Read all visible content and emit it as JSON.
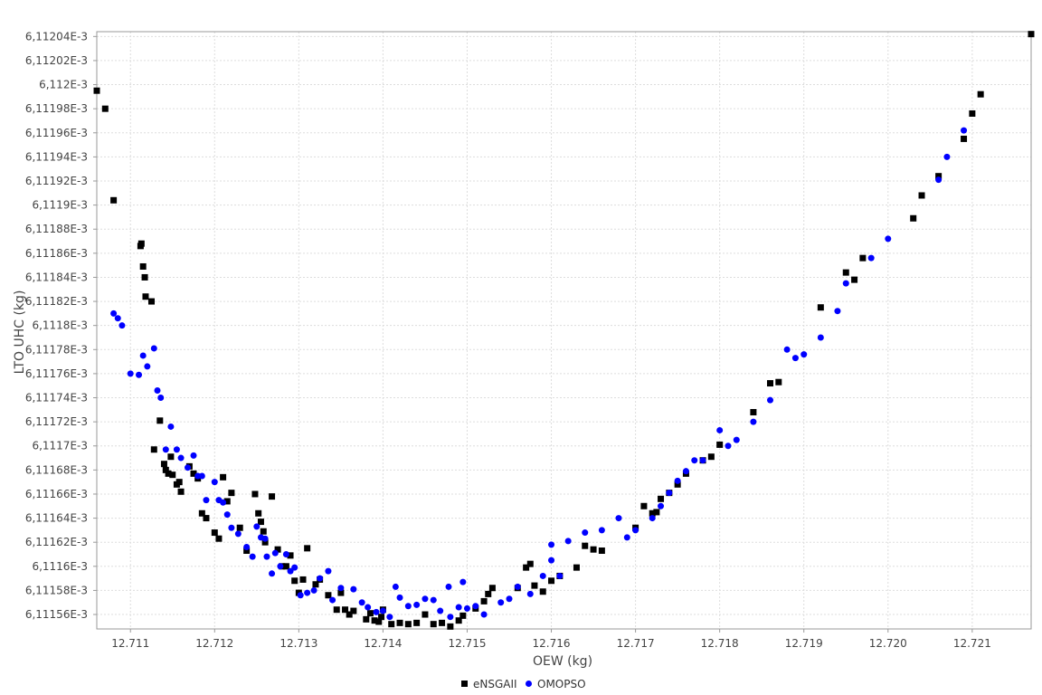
{
  "chart_data": {
    "type": "scatter",
    "title": "",
    "xlabel": "OEW (kg)",
    "ylabel": "LTO UHC (kg)",
    "xlim": [
      12.7106,
      12.7217
    ],
    "ylim": [
      6.111548,
      6.112044
    ],
    "x_ticks": [
      "12.711",
      "12.712",
      "12.713",
      "12.714",
      "12.715",
      "12.716",
      "12.717",
      "12.718",
      "12.719",
      "12.720",
      "12.721"
    ],
    "x_tick_values": [
      12.711,
      12.712,
      12.713,
      12.714,
      12.715,
      12.716,
      12.717,
      12.718,
      12.719,
      12.72,
      12.721
    ],
    "y_ticks": [
      "6,11204E-3",
      "6,11202E-3",
      "6,112E-3",
      "6,11198E-3",
      "6,11196E-3",
      "6,11194E-3",
      "6,11192E-3",
      "6,1119E-3",
      "6,11188E-3",
      "6,11186E-3",
      "6,11184E-3",
      "6,11182E-3",
      "6,1118E-3",
      "6,11178E-3",
      "6,11176E-3",
      "6,11174E-3",
      "6,11172E-3",
      "6,1117E-3",
      "6,11168E-3",
      "6,11166E-3",
      "6,11164E-3",
      "6,11162E-3",
      "6,1116E-3",
      "6,11158E-3",
      "6,11156E-3"
    ],
    "y_tick_values": [
      6.11204,
      6.11202,
      6.112,
      6.11198,
      6.11196,
      6.11194,
      6.11192,
      6.1119,
      6.11188,
      6.11186,
      6.11184,
      6.11182,
      6.1118,
      6.11178,
      6.11176,
      6.11174,
      6.11172,
      6.1117,
      6.11168,
      6.11166,
      6.11164,
      6.11162,
      6.1116,
      6.11158,
      6.11156
    ],
    "grid": true,
    "legend_position": "bottom-center",
    "series": [
      {
        "name": "eNSGAII",
        "marker": "square",
        "color": "#000000",
        "points": [
          [
            12.7106,
            6.111995
          ],
          [
            12.7107,
            6.11198
          ],
          [
            12.7108,
            6.111904
          ],
          [
            12.71113,
            6.111868
          ],
          [
            12.71112,
            6.111866
          ],
          [
            12.71115,
            6.111849
          ],
          [
            12.71117,
            6.11184
          ],
          [
            12.71118,
            6.111824
          ],
          [
            12.71125,
            6.11182
          ],
          [
            12.71128,
            6.111697
          ],
          [
            12.71135,
            6.111721
          ],
          [
            12.7114,
            6.111685
          ],
          [
            12.71142,
            6.11168
          ],
          [
            12.71145,
            6.111677
          ],
          [
            12.71148,
            6.111691
          ],
          [
            12.7115,
            6.111676
          ],
          [
            12.71155,
            6.111668
          ],
          [
            12.71158,
            6.11167
          ],
          [
            12.7116,
            6.111662
          ],
          [
            12.7117,
            6.111683
          ],
          [
            12.71175,
            6.111677
          ],
          [
            12.7118,
            6.111673
          ],
          [
            12.71185,
            6.111644
          ],
          [
            12.7119,
            6.11164
          ],
          [
            12.7121,
            6.111674
          ],
          [
            12.7122,
            6.111661
          ],
          [
            12.712,
            6.111628
          ],
          [
            12.71205,
            6.111623
          ],
          [
            12.71215,
            6.111654
          ],
          [
            12.7123,
            6.111632
          ],
          [
            12.71238,
            6.111613
          ],
          [
            12.71248,
            6.11166
          ],
          [
            12.71252,
            6.111644
          ],
          [
            12.71255,
            6.111637
          ],
          [
            12.71258,
            6.111629
          ],
          [
            12.7126,
            6.11162
          ],
          [
            12.71268,
            6.111658
          ],
          [
            12.71275,
            6.111614
          ],
          [
            12.7128,
            6.1116
          ],
          [
            12.71285,
            6.1116
          ],
          [
            12.7129,
            6.111609
          ],
          [
            12.71295,
            6.111588
          ],
          [
            12.713,
            6.111578
          ],
          [
            12.71305,
            6.111589
          ],
          [
            12.7131,
            6.111615
          ],
          [
            12.7132,
            6.111585
          ],
          [
            12.71325,
            6.111589
          ],
          [
            12.71335,
            6.111576
          ],
          [
            12.71345,
            6.111564
          ],
          [
            12.7135,
            6.111578
          ],
          [
            12.71355,
            6.111564
          ],
          [
            12.7136,
            6.11156
          ],
          [
            12.71365,
            6.111563
          ],
          [
            12.7138,
            6.111556
          ],
          [
            12.71385,
            6.111561
          ],
          [
            12.7139,
            6.111555
          ],
          [
            12.71395,
            6.111554
          ],
          [
            12.71398,
            6.111558
          ],
          [
            12.714,
            6.111564
          ],
          [
            12.7141,
            6.111552
          ],
          [
            12.7142,
            6.111553
          ],
          [
            12.7143,
            6.111552
          ],
          [
            12.7144,
            6.111553
          ],
          [
            12.7145,
            6.11156
          ],
          [
            12.7146,
            6.111552
          ],
          [
            12.7147,
            6.111553
          ],
          [
            12.7148,
            6.11155
          ],
          [
            12.7149,
            6.111555
          ],
          [
            12.71495,
            6.111559
          ],
          [
            12.7151,
            6.111565
          ],
          [
            12.7152,
            6.111571
          ],
          [
            12.71525,
            6.111577
          ],
          [
            12.7153,
            6.111582
          ],
          [
            12.7156,
            6.111582
          ],
          [
            12.7157,
            6.111599
          ],
          [
            12.71575,
            6.111602
          ],
          [
            12.7158,
            6.111584
          ],
          [
            12.7159,
            6.111579
          ],
          [
            12.716,
            6.111588
          ],
          [
            12.7161,
            6.111592
          ],
          [
            12.7163,
            6.111599
          ],
          [
            12.7164,
            6.111617
          ],
          [
            12.7165,
            6.111614
          ],
          [
            12.7166,
            6.111613
          ],
          [
            12.717,
            6.111632
          ],
          [
            12.7171,
            6.11165
          ],
          [
            12.7172,
            6.111644
          ],
          [
            12.71725,
            6.111645
          ],
          [
            12.7173,
            6.111656
          ],
          [
            12.7174,
            6.111661
          ],
          [
            12.7175,
            6.111668
          ],
          [
            12.7176,
            6.111677
          ],
          [
            12.7178,
            6.111688
          ],
          [
            12.7179,
            6.111691
          ],
          [
            12.718,
            6.111701
          ],
          [
            12.7184,
            6.111728
          ],
          [
            12.7186,
            6.111752
          ],
          [
            12.7187,
            6.111753
          ],
          [
            12.7195,
            6.111844
          ],
          [
            12.7196,
            6.111838
          ],
          [
            12.7192,
            6.111815
          ],
          [
            12.7197,
            6.111856
          ],
          [
            12.7203,
            6.111889
          ],
          [
            12.7204,
            6.111908
          ],
          [
            12.7206,
            6.111924
          ],
          [
            12.7209,
            6.111955
          ],
          [
            12.721,
            6.111976
          ],
          [
            12.7211,
            6.111992
          ],
          [
            12.7217,
            6.112042
          ]
        ]
      },
      {
        "name": "OMOPSO",
        "marker": "circle",
        "color": "#0000ff",
        "points": [
          [
            12.7108,
            6.11181
          ],
          [
            12.71085,
            6.111806
          ],
          [
            12.7109,
            6.1118
          ],
          [
            12.711,
            6.11176
          ],
          [
            12.7111,
            6.111759
          ],
          [
            12.71115,
            6.111775
          ],
          [
            12.7112,
            6.111766
          ],
          [
            12.71128,
            6.111781
          ],
          [
            12.71132,
            6.111746
          ],
          [
            12.71136,
            6.11174
          ],
          [
            12.71142,
            6.111697
          ],
          [
            12.71148,
            6.111716
          ],
          [
            12.71155,
            6.111697
          ],
          [
            12.7116,
            6.11169
          ],
          [
            12.71168,
            6.111682
          ],
          [
            12.71175,
            6.111692
          ],
          [
            12.7118,
            6.111675
          ],
          [
            12.71185,
            6.111675
          ],
          [
            12.7119,
            6.111655
          ],
          [
            12.712,
            6.11167
          ],
          [
            12.71205,
            6.111655
          ],
          [
            12.7121,
            6.111653
          ],
          [
            12.71215,
            6.111643
          ],
          [
            12.7122,
            6.111632
          ],
          [
            12.71228,
            6.111627
          ],
          [
            12.71238,
            6.111616
          ],
          [
            12.71245,
            6.111608
          ],
          [
            12.7125,
            6.111633
          ],
          [
            12.71255,
            6.111624
          ],
          [
            12.7126,
            6.111623
          ],
          [
            12.71262,
            6.111608
          ],
          [
            12.71268,
            6.111594
          ],
          [
            12.71272,
            6.111611
          ],
          [
            12.71278,
            6.1116
          ],
          [
            12.71285,
            6.11161
          ],
          [
            12.7129,
            6.111596
          ],
          [
            12.71295,
            6.111599
          ],
          [
            12.71302,
            6.111576
          ],
          [
            12.7131,
            6.111578
          ],
          [
            12.71318,
            6.11158
          ],
          [
            12.71325,
            6.11159
          ],
          [
            12.71335,
            6.111596
          ],
          [
            12.7134,
            6.111572
          ],
          [
            12.7135,
            6.111582
          ],
          [
            12.71365,
            6.111581
          ],
          [
            12.71375,
            6.11157
          ],
          [
            12.71382,
            6.111566
          ],
          [
            12.71392,
            6.111562
          ],
          [
            12.714,
            6.111563
          ],
          [
            12.71408,
            6.111558
          ],
          [
            12.71415,
            6.111583
          ],
          [
            12.7142,
            6.111574
          ],
          [
            12.7143,
            6.111567
          ],
          [
            12.7144,
            6.111568
          ],
          [
            12.7145,
            6.111573
          ],
          [
            12.7146,
            6.111572
          ],
          [
            12.71468,
            6.111563
          ],
          [
            12.71478,
            6.111583
          ],
          [
            12.7148,
            6.111558
          ],
          [
            12.7149,
            6.111566
          ],
          [
            12.71495,
            6.111587
          ],
          [
            12.715,
            6.111565
          ],
          [
            12.7151,
            6.111567
          ],
          [
            12.7152,
            6.11156
          ],
          [
            12.7154,
            6.11157
          ],
          [
            12.7155,
            6.111573
          ],
          [
            12.7156,
            6.111583
          ],
          [
            12.71575,
            6.111577
          ],
          [
            12.7159,
            6.111592
          ],
          [
            12.716,
            6.111605
          ],
          [
            12.716,
            6.111618
          ],
          [
            12.7161,
            6.111592
          ],
          [
            12.7162,
            6.111621
          ],
          [
            12.7164,
            6.111628
          ],
          [
            12.7166,
            6.11163
          ],
          [
            12.7168,
            6.11164
          ],
          [
            12.7169,
            6.111624
          ],
          [
            12.717,
            6.11163
          ],
          [
            12.7172,
            6.11164
          ],
          [
            12.7173,
            6.11165
          ],
          [
            12.7174,
            6.111661
          ],
          [
            12.7175,
            6.111671
          ],
          [
            12.7176,
            6.111679
          ],
          [
            12.7177,
            6.111688
          ],
          [
            12.7178,
            6.111688
          ],
          [
            12.718,
            6.111713
          ],
          [
            12.7181,
            6.1117
          ],
          [
            12.7182,
            6.111705
          ],
          [
            12.7184,
            6.11172
          ],
          [
            12.7186,
            6.111738
          ],
          [
            12.7188,
            6.11178
          ],
          [
            12.7189,
            6.111773
          ],
          [
            12.719,
            6.111776
          ],
          [
            12.7192,
            6.11179
          ],
          [
            12.7194,
            6.111812
          ],
          [
            12.7195,
            6.111835
          ],
          [
            12.7198,
            6.111856
          ],
          [
            12.72,
            6.111872
          ],
          [
            12.7206,
            6.111921
          ],
          [
            12.7207,
            6.11194
          ],
          [
            12.7209,
            6.111962
          ]
        ]
      }
    ]
  }
}
